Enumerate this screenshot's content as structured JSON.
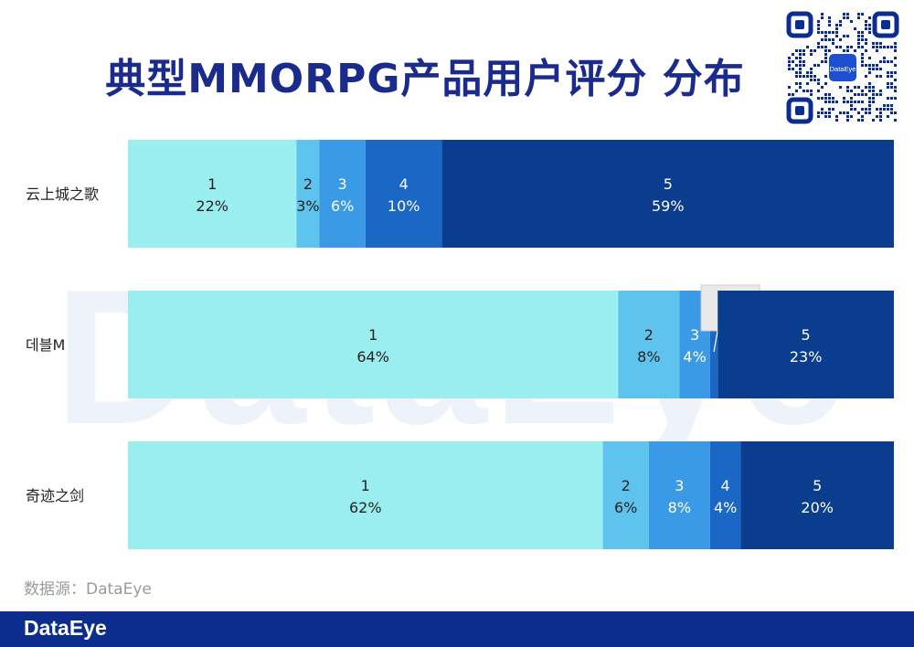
{
  "title": "典型MMORPG产品用户评分 分布",
  "source": "数据源：DataEye",
  "footer_logo": "DataEye",
  "watermark": "DataEye",
  "qr_center_text": "DataEye",
  "colors": {
    "title": "#1a2b8c",
    "footer": "#0c2d8e",
    "segments": [
      "#9beef0",
      "#5ec4ee",
      "#3b9ae6",
      "#1b67c6",
      "#0b3d8e"
    ]
  },
  "chart_data": {
    "type": "bar",
    "orientation": "horizontal",
    "stacked": true,
    "categories": [
      "云上城之歌",
      "데블M",
      "奇迹之剑"
    ],
    "series": [
      {
        "name": "1",
        "values": [
          22,
          64,
          62
        ],
        "labels": [
          "22%",
          "64%",
          "62%"
        ]
      },
      {
        "name": "2",
        "values": [
          3,
          8,
          6
        ],
        "labels": [
          "3%",
          "8%",
          "6%"
        ]
      },
      {
        "name": "3",
        "values": [
          6,
          4,
          8
        ],
        "labels": [
          "6%",
          "4%",
          "8%"
        ]
      },
      {
        "name": "4",
        "values": [
          10,
          1,
          4
        ],
        "labels": [
          "10%",
          "1%",
          "4%"
        ]
      },
      {
        "name": "5",
        "values": [
          59,
          23,
          20
        ],
        "labels": [
          "59%",
          "23%",
          "20%"
        ]
      }
    ],
    "xlim": [
      0,
      100
    ],
    "grid": false,
    "legend": "none"
  }
}
